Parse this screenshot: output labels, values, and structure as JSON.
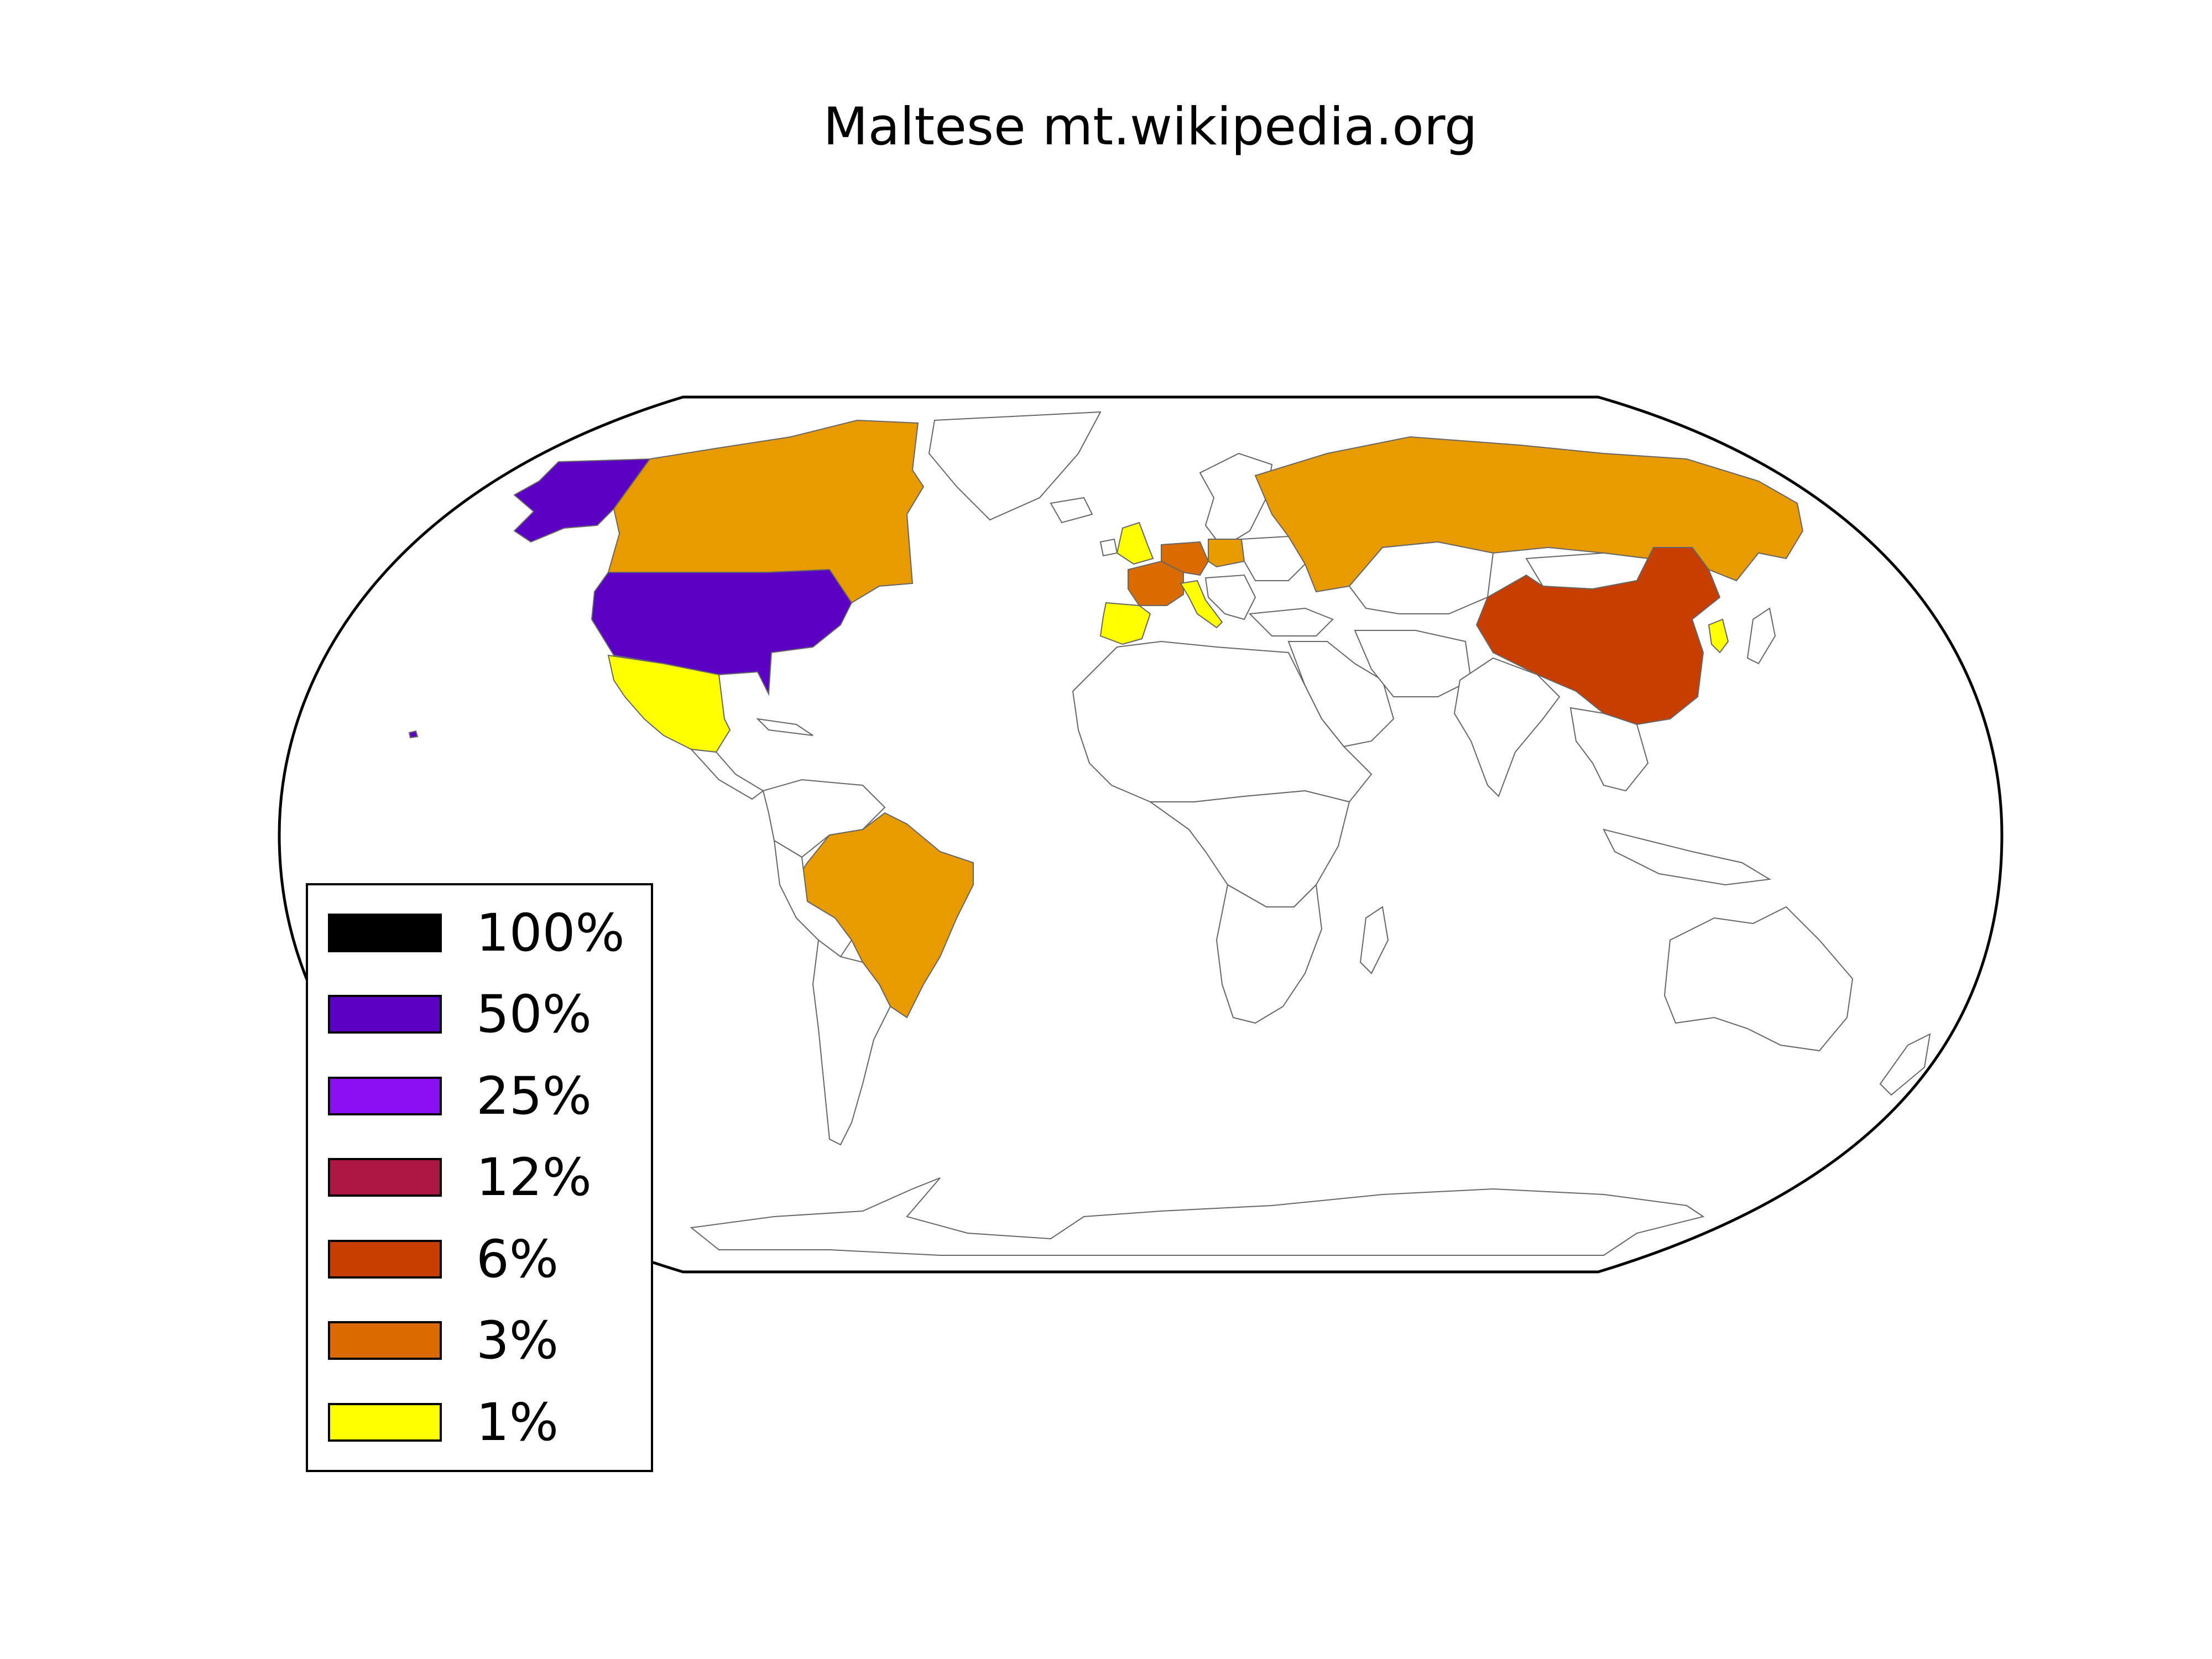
{
  "title": "Maltese mt.wikipedia.org",
  "colors": {
    "pct100": "#000000",
    "pct50": "#5c00c4",
    "pct25": "#8a0ff2",
    "pct12": "#ad1743",
    "pct6": "#c73f00",
    "pct3": "#d96b00",
    "pct1": "#ffff00",
    "land_shade": "#e89b00",
    "ocean": "#ffffff",
    "border": "#666666"
  },
  "legend": [
    {
      "label": "100%",
      "color": "#000000"
    },
    {
      "label": "50%",
      "color": "#5c00c4"
    },
    {
      "label": "25%",
      "color": "#8a0ff2"
    },
    {
      "label": "12%",
      "color": "#ad1743"
    },
    {
      "label": "6%",
      "color": "#c73f00"
    },
    {
      "label": "3%",
      "color": "#d96b00"
    },
    {
      "label": "1%",
      "color": "#ffff00"
    }
  ]
}
